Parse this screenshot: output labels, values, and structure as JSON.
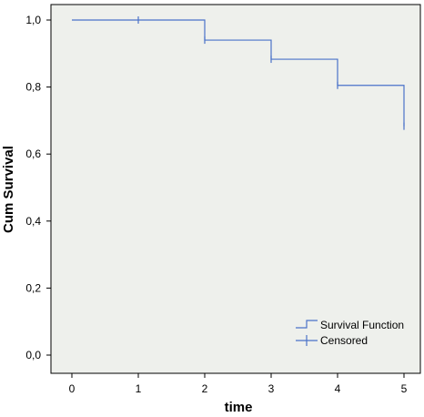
{
  "chart_data": {
    "type": "line",
    "subtype": "kaplan-meier",
    "title": "",
    "xlabel": "time",
    "ylabel": "Cum Survival",
    "xlim": [
      0,
      5
    ],
    "ylim": [
      0.0,
      1.0
    ],
    "x_ticks": [
      "0",
      "1",
      "2",
      "3",
      "4",
      "5"
    ],
    "y_ticks": [
      "0,0",
      "0,2",
      "0,4",
      "0,6",
      "0,8",
      "1,0"
    ],
    "grid": false,
    "legend_position": "bottom-right",
    "series": [
      {
        "name": "Survival Function",
        "kind": "step",
        "color": "#4a72c9",
        "points": [
          [
            0,
            1.0
          ],
          [
            2,
            0.94
          ],
          [
            3,
            0.883
          ],
          [
            4,
            0.805
          ],
          [
            5,
            0.683
          ]
        ]
      },
      {
        "name": "Censored",
        "kind": "censor-marks",
        "color": "#4a72c9",
        "points": [
          [
            1,
            1.0
          ],
          [
            2,
            0.94
          ],
          [
            3,
            0.883
          ],
          [
            4,
            0.805
          ],
          [
            5,
            0.683
          ]
        ]
      }
    ],
    "colors": {
      "plot_background": "#eef0ec",
      "line": "#4a72c9"
    }
  }
}
